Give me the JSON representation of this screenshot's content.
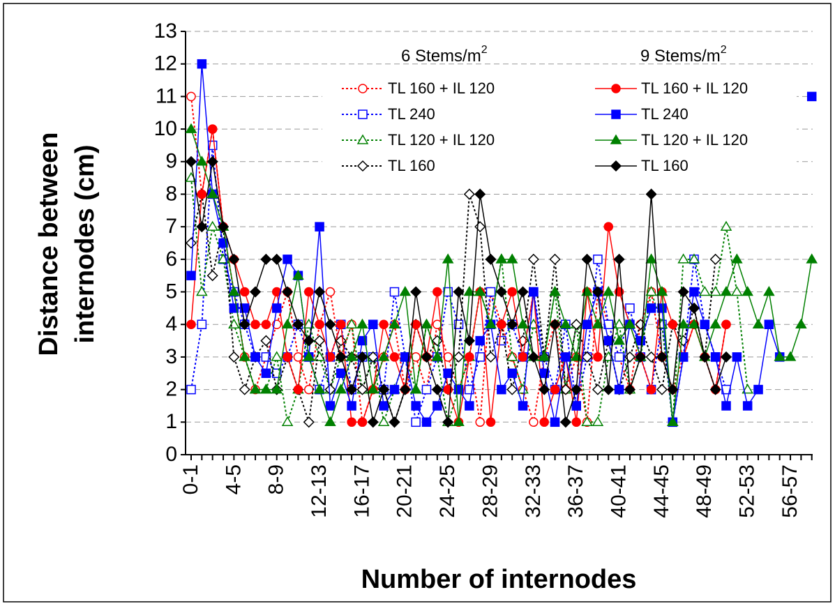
{
  "chart_data": {
    "type": "line",
    "y_label_lines": [
      "Distance between",
      "internodes (cm)"
    ],
    "xlabel": "Number of internodes",
    "categories": [
      "0-1",
      null,
      null,
      null,
      "4-5",
      null,
      null,
      null,
      "8-9",
      null,
      null,
      null,
      "12-13",
      null,
      null,
      null,
      "16-17",
      null,
      null,
      null,
      "20-21",
      null,
      null,
      null,
      "24-25",
      null,
      null,
      null,
      "28-29",
      null,
      null,
      null,
      "32-33",
      null,
      null,
      null,
      "36-37",
      null,
      null,
      null,
      "40-41",
      null,
      null,
      null,
      "44-45",
      null,
      null,
      null,
      "48-49",
      null,
      null,
      null,
      "52-53",
      null,
      null,
      null,
      "56-57",
      null,
      null
    ],
    "ylim": [
      0,
      13
    ],
    "yticks": [
      0,
      1,
      2,
      3,
      4,
      5,
      6,
      7,
      8,
      9,
      10,
      11,
      12,
      13
    ],
    "grid": true,
    "legend_groups": [
      {
        "title": "6 Stems/m",
        "sup": "2"
      },
      {
        "title": "9 Stems/m",
        "sup": "2"
      }
    ],
    "series": [
      {
        "name": "TL 160 + IL 120",
        "group": 0,
        "color": "#ff0000",
        "dashed": true,
        "marker": "circle",
        "filled": false,
        "values": [
          11,
          8,
          10,
          7,
          5,
          3,
          2,
          3,
          4,
          5,
          3,
          2,
          4,
          5,
          3,
          4,
          1,
          2,
          3,
          4,
          2,
          3,
          2,
          4,
          3,
          2,
          3,
          1,
          5,
          4,
          3,
          2,
          1,
          3,
          4,
          2,
          3,
          1,
          5,
          4,
          3,
          2,
          4,
          5,
          3,
          2,
          3,
          4,
          3,
          2,
          4,
          null,
          null,
          null,
          null,
          null,
          null,
          null,
          null
        ]
      },
      {
        "name": "TL 240",
        "group": 0,
        "color": "#0000ff",
        "dashed": true,
        "marker": "square",
        "filled": false,
        "values": [
          2,
          4,
          9.5,
          6,
          5,
          4,
          3,
          3,
          2.5,
          3,
          4,
          3,
          2,
          3,
          4,
          2,
          3,
          3,
          2,
          5,
          3,
          1,
          2,
          3,
          5,
          4,
          2,
          3,
          5,
          3.5,
          4,
          3,
          5,
          3,
          2,
          4,
          1.5,
          3,
          6,
          4,
          3,
          4.5,
          3,
          2,
          4,
          1,
          3,
          6,
          4,
          3,
          2,
          null,
          null,
          null,
          null,
          null,
          null,
          null,
          null
        ]
      },
      {
        "name": "TL 120 + IL 120",
        "group": 0,
        "color": "#008000",
        "dashed": true,
        "marker": "triangle",
        "filled": false,
        "values": [
          8.5,
          5,
          7,
          6,
          4,
          3,
          2,
          2,
          3,
          1,
          2,
          4,
          3,
          2,
          3,
          4,
          2,
          3,
          1,
          2,
          3,
          2,
          4,
          3,
          1,
          2,
          3,
          5,
          4,
          6,
          3,
          2,
          4,
          3,
          5,
          2,
          4,
          1,
          1,
          3,
          4,
          2,
          3,
          5,
          4,
          1,
          6,
          6,
          5,
          5,
          7,
          5,
          2,
          null,
          null,
          null,
          null,
          null,
          null
        ]
      },
      {
        "name": "TL 160",
        "group": 0,
        "color": "#000000",
        "dashed": true,
        "marker": "diamond",
        "filled": false,
        "values": [
          6.5,
          8,
          5.5,
          7,
          3,
          2,
          3,
          3.5,
          2,
          3,
          2,
          1,
          3.5,
          2,
          3.5,
          3,
          2,
          3,
          2,
          1,
          2,
          4,
          3,
          3.5,
          2,
          3,
          8,
          7,
          3,
          4,
          2,
          3.5,
          6,
          3,
          6,
          2,
          4,
          3,
          2,
          3.5,
          2,
          3,
          4,
          3,
          2,
          4,
          3.5,
          4.5,
          3,
          6,
          null,
          null,
          null,
          null,
          null,
          null,
          null,
          null,
          null
        ]
      },
      {
        "name": "TL 160 + IL 120",
        "group": 1,
        "color": "#ff0000",
        "dashed": false,
        "marker": "circle",
        "filled": true,
        "values": [
          4,
          8,
          10,
          7,
          6,
          5,
          4,
          4,
          5,
          3,
          2,
          5,
          4,
          3,
          4,
          1,
          1,
          2,
          4,
          3,
          2,
          4,
          3,
          5,
          2,
          1,
          3,
          5,
          1,
          4,
          5,
          3,
          5,
          1,
          2,
          3,
          1,
          5,
          3,
          7,
          5,
          4,
          3,
          2,
          5,
          4,
          3,
          4,
          3,
          2,
          4,
          null,
          null,
          null,
          null,
          null,
          null,
          null,
          null
        ]
      },
      {
        "name": "TL 240",
        "group": 1,
        "color": "#0000ff",
        "dashed": false,
        "marker": "square",
        "filled": true,
        "values": [
          5.5,
          12,
          8,
          6.5,
          4.5,
          4.5,
          3,
          2.5,
          4.5,
          6,
          5.5,
          3,
          7,
          1.5,
          2.5,
          1.5,
          3.5,
          4,
          1.5,
          2,
          3,
          1.5,
          1,
          1.5,
          2.5,
          2,
          1.5,
          3.5,
          4,
          2,
          2.5,
          1.5,
          5,
          2.5,
          1,
          3,
          1.5,
          4,
          5,
          3.5,
          2,
          4,
          3.5,
          4.5,
          4.5,
          1,
          3,
          5,
          4,
          3,
          1.5,
          3,
          1.5,
          2,
          4,
          3,
          null,
          null,
          11
        ]
      },
      {
        "name": "TL 120 + IL 120",
        "group": 1,
        "color": "#008000",
        "dashed": false,
        "marker": "triangle",
        "filled": true,
        "values": [
          10,
          9,
          8,
          7,
          5,
          3,
          2,
          2,
          2,
          4,
          5.5,
          3,
          2,
          1,
          2,
          3,
          4,
          2,
          3,
          4,
          5,
          2,
          4,
          3,
          6,
          1,
          5,
          5,
          4,
          6,
          6,
          4,
          3,
          3,
          5,
          4,
          3,
          5,
          4,
          5,
          3.5,
          4,
          3,
          6,
          5,
          1,
          4,
          4,
          3,
          4,
          5,
          6,
          5,
          4,
          5,
          3,
          3,
          4,
          6
        ]
      },
      {
        "name": "TL 160",
        "group": 1,
        "color": "#000000",
        "dashed": false,
        "marker": "diamond",
        "filled": true,
        "values": [
          9,
          7,
          9,
          7,
          6,
          4,
          5,
          6,
          6,
          5,
          4,
          3.5,
          5,
          4,
          3,
          2,
          3,
          1,
          2,
          1,
          2,
          5,
          3,
          2,
          1,
          5,
          3.5,
          8,
          6,
          5,
          4,
          5,
          3,
          2,
          4,
          1,
          2,
          6,
          5,
          2,
          6,
          2,
          3,
          8,
          3,
          2,
          5,
          4.5,
          3,
          2,
          3,
          null,
          null,
          null,
          null,
          null,
          null,
          null,
          null
        ]
      }
    ]
  }
}
